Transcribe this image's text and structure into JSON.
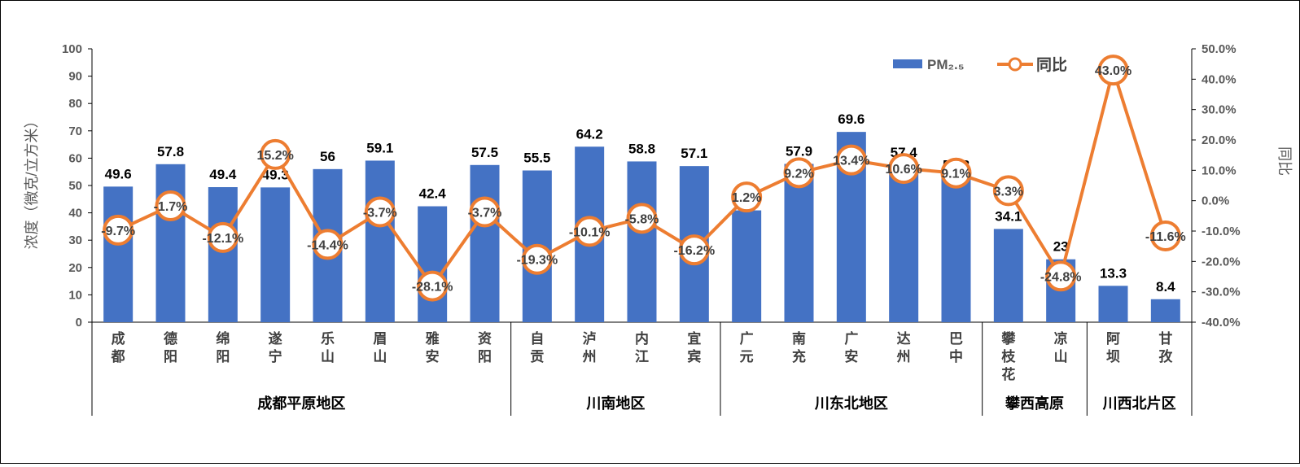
{
  "chart_data": {
    "type": "bar",
    "categories": [
      "成都",
      "德阳",
      "绵阳",
      "遂宁",
      "乐山",
      "眉山",
      "雅安",
      "资阳",
      "自贡",
      "泸州",
      "内江",
      "宜宾",
      "广元",
      "南充",
      "广安",
      "达州",
      "巴中",
      "攀枝花",
      "凉山",
      "阿坝",
      "甘孜"
    ],
    "groups": [
      {
        "name": "成都平原地区",
        "count": 8
      },
      {
        "name": "川南地区",
        "count": 4
      },
      {
        "name": "川东北地区",
        "count": 5
      },
      {
        "name": "攀西高原",
        "count": 2
      },
      {
        "name": "川西北片区",
        "count": 2
      }
    ],
    "series": [
      {
        "name": "PM₂.₅",
        "type": "bar",
        "color": "#4472C4",
        "values": [
          49.6,
          57.8,
          49.4,
          49.3,
          56,
          59.1,
          42.4,
          57.5,
          55.5,
          64.2,
          58.8,
          57.1,
          40.9,
          57.9,
          69.6,
          57.4,
          52.8,
          34.1,
          23,
          13.3,
          8.4
        ],
        "labels": [
          "49.6",
          "57.8",
          "49.4",
          "49.3",
          "56",
          "59.1",
          "42.4",
          "57.5",
          "55.5",
          "64.2",
          "58.8",
          "57.1",
          "40.9",
          "57.9",
          "69.6",
          "57.4",
          "52.8",
          "34.1",
          "23",
          "13.3",
          "8.4"
        ]
      },
      {
        "name": "同比",
        "type": "line",
        "color": "#ED7D31",
        "axis": "right",
        "values": [
          -9.7,
          -1.7,
          -12.1,
          15.2,
          -14.4,
          -3.7,
          -28.1,
          -3.7,
          -19.3,
          -10.1,
          -5.8,
          -16.2,
          1.2,
          9.2,
          13.4,
          10.6,
          9.1,
          3.3,
          -24.8,
          43.0,
          -11.6
        ],
        "labels": [
          "-9.7%",
          "-1.7%",
          "-12.1%",
          "15.2%",
          "-14.4%",
          "-3.7%",
          "-28.1%",
          "-3.7%",
          "-19.3%",
          "-10.1%",
          "-5.8%",
          "-16.2%",
          "1.2%",
          "9.2%",
          "13.4%",
          "10.6%",
          "9.1%",
          "3.3%",
          "-24.8%",
          "43.0%",
          "-11.6%"
        ]
      }
    ],
    "ylabel": "浓度（微克/立方米）",
    "y2label": "同比",
    "ylim": [
      0,
      100
    ],
    "y2lim": [
      -40,
      50
    ],
    "yticks": [
      "0",
      "10",
      "20",
      "30",
      "40",
      "50",
      "60",
      "70",
      "80",
      "90",
      "100"
    ],
    "y2ticks": [
      "-40.0%",
      "-30.0%",
      "-20.0%",
      "-10.0%",
      "0.0%",
      "10.0%",
      "20.0%",
      "30.0%",
      "40.0%",
      "50.0%"
    ],
    "legend_position": "top-right",
    "grid": false
  }
}
